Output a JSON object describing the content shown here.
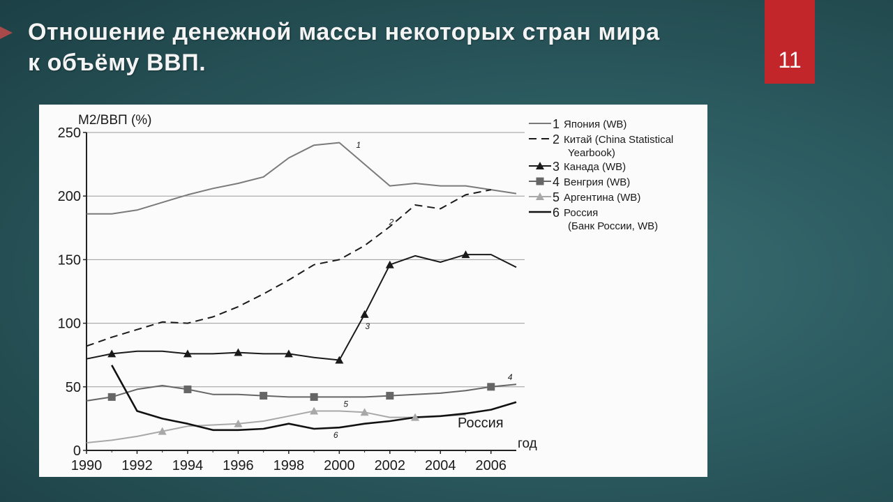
{
  "slide": {
    "title": "Отношение денежной массы некоторых стран мира\n к объёму ВВП.",
    "number": "11",
    "accent_color": "#c2262a"
  },
  "chart_data": {
    "type": "line",
    "ylabel": "М2/ВВП (%)",
    "xlabel": "год",
    "xlim": [
      1990,
      2007
    ],
    "ylim": [
      0,
      250
    ],
    "x_ticks": [
      "1990",
      "1992",
      "1994",
      "1996",
      "1998",
      "2000",
      "2002",
      "2004",
      "2006"
    ],
    "y_ticks": [
      "0",
      "50",
      "100",
      "150",
      "200",
      "250"
    ],
    "grid": "horizontal",
    "legend_position": "top-right",
    "annotation": "Россия",
    "series": [
      {
        "id": "1",
        "name": "Япония (WB)",
        "style": "solid",
        "color": "#7a7a7a",
        "marker": "none",
        "x": [
          1990,
          1991,
          1992,
          1993,
          1994,
          1995,
          1996,
          1997,
          1998,
          1999,
          2000,
          2001,
          2002,
          2003,
          2004,
          2005,
          2006,
          2007
        ],
        "values": [
          186,
          186,
          189,
          195,
          201,
          206,
          210,
          215,
          230,
          240,
          242,
          225,
          208,
          210,
          208,
          208,
          205,
          202
        ]
      },
      {
        "id": "2",
        "name": "Китай (China Statistical\nYearbook)",
        "style": "dashed",
        "color": "#1a1a1a",
        "marker": "none",
        "x": [
          1990,
          1991,
          1992,
          1993,
          1994,
          1995,
          1996,
          1997,
          1998,
          1999,
          2000,
          2001,
          2002,
          2003,
          2004,
          2005,
          2006
        ],
        "values": [
          82,
          89,
          95,
          101,
          100,
          105,
          113,
          123,
          134,
          146,
          150,
          161,
          176,
          193,
          190,
          201,
          205
        ]
      },
      {
        "id": "3",
        "name": "Канада (WB)",
        "style": "solid",
        "color": "#1a1a1a",
        "marker": "triangle",
        "x": [
          1990,
          1991,
          1992,
          1993,
          1994,
          1995,
          1996,
          1997,
          1998,
          1999,
          2000,
          2001,
          2002,
          2003,
          2004,
          2005,
          2006,
          2007
        ],
        "values": [
          72,
          76,
          78,
          78,
          76,
          76,
          77,
          76,
          76,
          73,
          71,
          107,
          146,
          153,
          148,
          154,
          154,
          144
        ],
        "marker_x": [
          1991,
          1994,
          1996,
          1998,
          2000,
          2001,
          2002,
          2005
        ]
      },
      {
        "id": "4",
        "name": "Венгрия (WB)",
        "style": "solid",
        "color": "#666666",
        "marker": "square",
        "x": [
          1990,
          1991,
          1992,
          1993,
          1994,
          1995,
          1996,
          1997,
          1998,
          1999,
          2000,
          2001,
          2002,
          2003,
          2004,
          2005,
          2006,
          2007
        ],
        "values": [
          39,
          42,
          48,
          51,
          48,
          44,
          44,
          43,
          42,
          42,
          42,
          42,
          43,
          44,
          45,
          47,
          50,
          52
        ],
        "marker_x": [
          1991,
          1994,
          1997,
          1999,
          2002,
          2006
        ]
      },
      {
        "id": "5",
        "name": "Аргентина (WB)",
        "style": "solid",
        "color": "#a8a8a8",
        "marker": "triangle",
        "x": [
          1990,
          1991,
          1992,
          1993,
          1994,
          1995,
          1996,
          1997,
          1998,
          1999,
          2000,
          2001,
          2002,
          2003,
          2004,
          2005
        ],
        "values": [
          6,
          8,
          11,
          15,
          19,
          20,
          21,
          23,
          27,
          31,
          31,
          30,
          26,
          26,
          27,
          28
        ],
        "marker_x": [
          1993,
          1996,
          1999,
          2001,
          2003
        ]
      },
      {
        "id": "6",
        "name": "Россия\n(Банк России, WB)",
        "style": "solid",
        "color": "#111111",
        "marker": "none",
        "x": [
          1991,
          1992,
          1993,
          1994,
          1995,
          1996,
          1997,
          1998,
          1999,
          2000,
          2001,
          2002,
          2003,
          2004,
          2005,
          2006,
          2007
        ],
        "values": [
          67,
          31,
          25,
          21,
          16,
          16,
          17,
          21,
          17,
          18,
          21,
          23,
          26,
          27,
          29,
          32,
          38
        ]
      }
    ],
    "line_labels": [
      {
        "text": "1",
        "series": "1",
        "x": 2000.5
      },
      {
        "text": "2",
        "series": "2",
        "x": 2001.8
      },
      {
        "text": "3",
        "series": "3",
        "x": 2000.8
      },
      {
        "text": "4",
        "series": "4",
        "x": 2006.5
      },
      {
        "text": "5",
        "series": "5",
        "x": 2000.0
      },
      {
        "text": "6",
        "series": "6",
        "x": 1999.6
      }
    ]
  }
}
